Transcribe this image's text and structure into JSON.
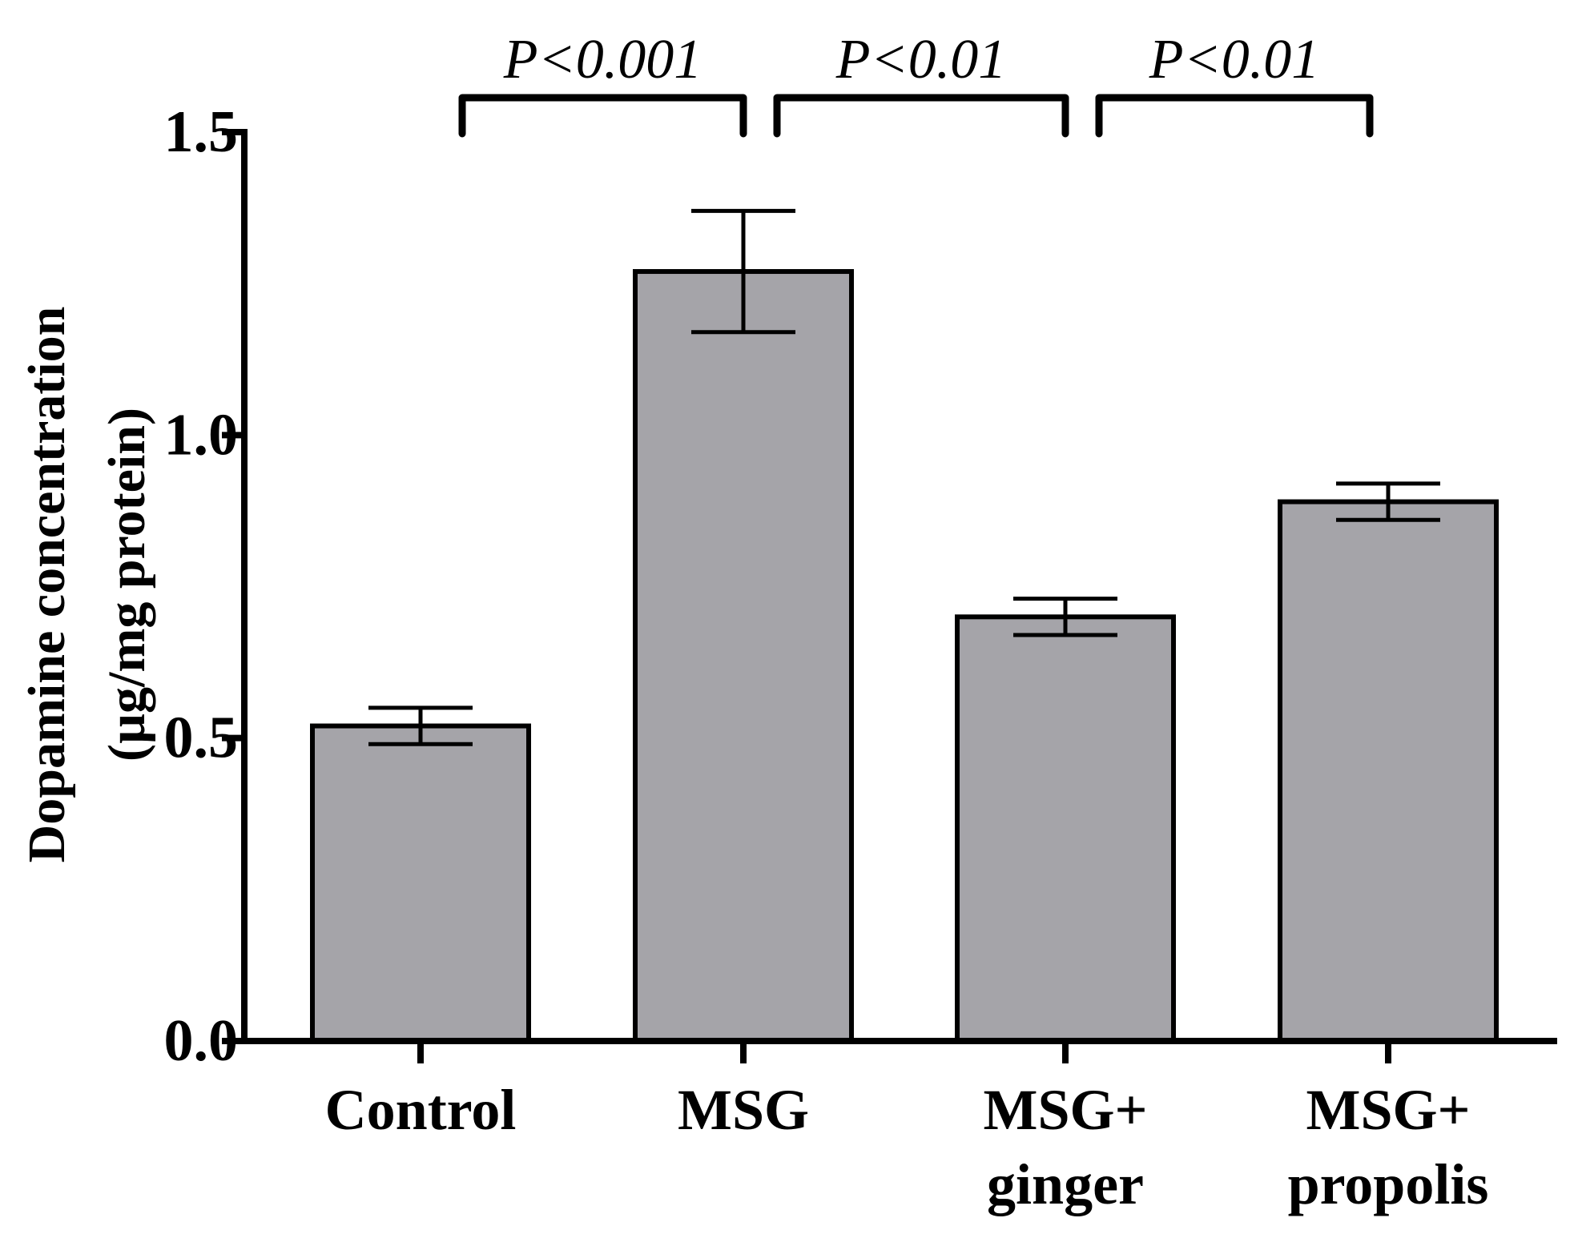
{
  "chart_data": {
    "type": "bar",
    "title": "",
    "xlabel": "",
    "ylabel_line1": "Dopamine concentration",
    "ylabel_line2": "(µg/mg protein)",
    "ylim": [
      0,
      1.5
    ],
    "yticks": [
      {
        "value": 0.0,
        "label": "0.0"
      },
      {
        "value": 0.5,
        "label": "0.5"
      },
      {
        "value": 1.0,
        "label": "1.0"
      },
      {
        "value": 1.5,
        "label": "1.5"
      }
    ],
    "categories": [
      {
        "line1": "Control",
        "line2": ""
      },
      {
        "line1": "MSG",
        "line2": ""
      },
      {
        "line1": "MSG+",
        "line2": "ginger"
      },
      {
        "line1": "MSG+",
        "line2": "propolis"
      }
    ],
    "values": [
      0.52,
      1.27,
      0.7,
      0.89
    ],
    "errors": [
      0.03,
      0.1,
      0.03,
      0.03
    ],
    "bar_color": "#a5a4a9",
    "significance": [
      {
        "from": 0,
        "to": 1,
        "label": "P<0.001"
      },
      {
        "from": 1,
        "to": 2,
        "label": "P<0.01"
      },
      {
        "from": 2,
        "to": 3,
        "label": "P<0.01"
      }
    ]
  }
}
